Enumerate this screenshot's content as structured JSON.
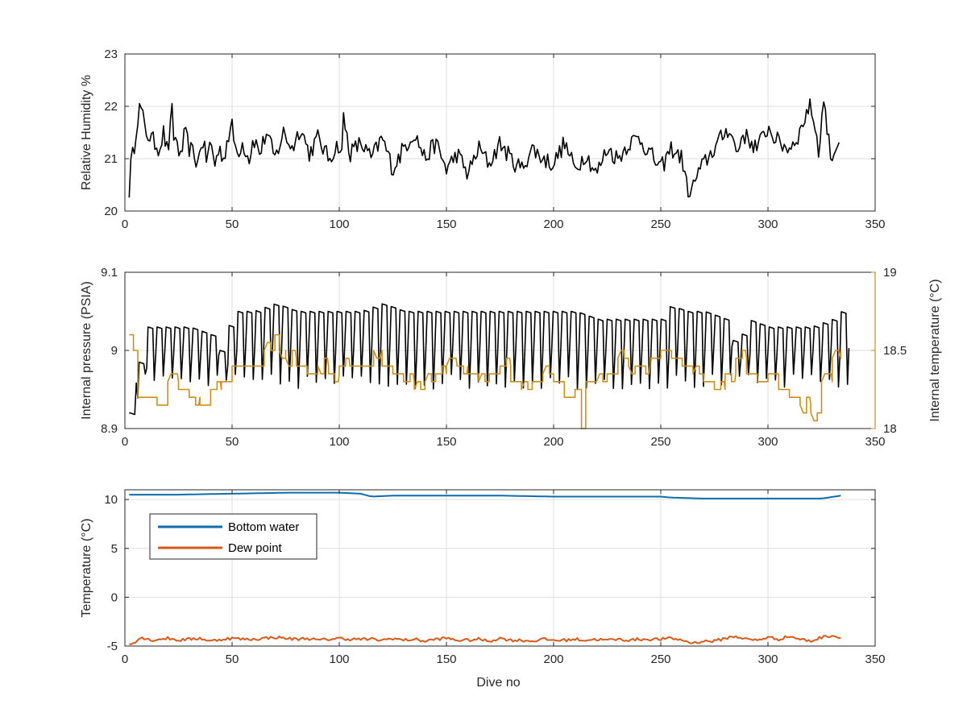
{
  "chart_data": [
    {
      "type": "line",
      "title": "",
      "xlabel": "",
      "ylabel": "Relative Humidity %",
      "xlim": [
        0,
        350
      ],
      "ylim": [
        20,
        23
      ],
      "xticks": [
        0,
        50,
        100,
        150,
        200,
        250,
        300,
        350
      ],
      "yticks": [
        20,
        21,
        22,
        23
      ],
      "grid": true,
      "series": [
        {
          "name": "",
          "color": "#000000",
          "x": [
            2,
            3,
            4,
            5,
            6,
            7,
            8,
            9,
            10,
            12,
            14,
            16,
            18,
            20,
            22,
            23,
            24,
            26,
            28,
            30,
            32,
            34,
            36,
            38,
            40,
            42,
            44,
            46,
            48,
            50,
            52,
            55,
            58,
            60,
            63,
            66,
            70,
            74,
            78,
            82,
            86,
            90,
            95,
            100,
            101,
            102,
            105,
            110,
            115,
            120,
            125,
            130,
            135,
            140,
            145,
            150,
            155,
            160,
            165,
            170,
            175,
            180,
            185,
            190,
            195,
            200,
            205,
            210,
            215,
            220,
            225,
            230,
            235,
            240,
            245,
            250,
            255,
            260,
            262,
            264,
            266,
            270,
            275,
            280,
            282,
            284,
            286,
            288,
            290,
            295,
            300,
            305,
            310,
            315,
            318,
            320,
            322,
            324,
            326,
            328,
            330,
            332,
            334
          ],
          "values": [
            20.4,
            21.0,
            21.1,
            21.5,
            21.8,
            22.0,
            21.9,
            21.6,
            21.5,
            21.4,
            21.3,
            21.2,
            21.5,
            21.1,
            21.9,
            21.3,
            21.4,
            21.0,
            21.5,
            21.2,
            21.1,
            20.9,
            21.4,
            21.0,
            21.3,
            20.9,
            21.2,
            21.0,
            21.4,
            21.6,
            21.1,
            21.3,
            21.0,
            21.4,
            21.1,
            21.5,
            21.0,
            21.5,
            21.2,
            21.6,
            21.1,
            21.4,
            21.0,
            21.3,
            20.9,
            21.8,
            21.1,
            21.3,
            21.0,
            21.4,
            20.8,
            21.2,
            21.5,
            21.0,
            21.3,
            20.8,
            21.1,
            20.7,
            21.2,
            20.9,
            21.3,
            21.0,
            20.8,
            21.2,
            21.0,
            20.9,
            21.3,
            20.8,
            21.1,
            20.7,
            21.2,
            21.0,
            21.3,
            21.4,
            21.1,
            20.8,
            21.2,
            21.0,
            20.5,
            20.3,
            20.6,
            20.9,
            21.2,
            21.5,
            21.6,
            21.3,
            21.1,
            21.5,
            21.4,
            21.2,
            21.6,
            21.3,
            21.2,
            21.5,
            21.9,
            22.0,
            21.6,
            21.1,
            22.2,
            21.4,
            21.0,
            21.3,
            21.4
          ]
        }
      ]
    },
    {
      "type": "line",
      "title": "",
      "xlabel": "",
      "ylabel": "Internal pressure (PSIA)",
      "ylabel_right": "Internal temperature (°C)",
      "xlim": [
        0,
        350
      ],
      "ylim": [
        8.9,
        9.1
      ],
      "ylim_right": [
        18,
        19
      ],
      "xticks": [
        0,
        50,
        100,
        150,
        200,
        250,
        300,
        350
      ],
      "yticks": [
        8.9,
        9,
        9.1
      ],
      "yticks_right": [
        18,
        18.5,
        19
      ],
      "grid": true,
      "series": [
        {
          "name": "",
          "axis": "left",
          "color": "#000000",
          "x": [
            2,
            4,
            6,
            8,
            10,
            20,
            30,
            40,
            44,
            48,
            50,
            60,
            70,
            80,
            90,
            100,
            110,
            120,
            130,
            140,
            150,
            160,
            170,
            180,
            190,
            200,
            210,
            220,
            230,
            240,
            250,
            255,
            260,
            270,
            280,
            285,
            290,
            300,
            310,
            320,
            330,
            334
          ],
          "values": [
            8.92,
            8.94,
            8.98,
            9.03,
            9.03,
            9.03,
            9.03,
            9.02,
            9.0,
            9.03,
            9.05,
            9.05,
            9.06,
            9.05,
            9.05,
            9.05,
            9.05,
            9.06,
            9.05,
            9.05,
            9.05,
            9.05,
            9.05,
            9.05,
            9.05,
            9.05,
            9.05,
            9.04,
            9.04,
            9.04,
            9.04,
            9.06,
            9.05,
            9.05,
            9.04,
            9.0,
            9.04,
            9.03,
            9.03,
            9.03,
            9.04,
            9.05
          ],
          "oscillation_low": 8.96
        },
        {
          "name": "",
          "axis": "right",
          "color": "#c8901a",
          "x": [
            2,
            4,
            6,
            10,
            15,
            20,
            25,
            30,
            35,
            40,
            45,
            48,
            50,
            55,
            60,
            65,
            70,
            72,
            75,
            80,
            85,
            90,
            95,
            100,
            105,
            110,
            114,
            116,
            120,
            125,
            130,
            135,
            140,
            145,
            150,
            155,
            160,
            165,
            170,
            175,
            180,
            185,
            190,
            195,
            200,
            205,
            210,
            213,
            215,
            220,
            225,
            230,
            235,
            240,
            245,
            250,
            255,
            260,
            265,
            270,
            275,
            280,
            285,
            290,
            295,
            300,
            305,
            310,
            315,
            320,
            325,
            330,
            334
          ],
          "values": [
            18.6,
            18.5,
            18.2,
            18.2,
            18.15,
            18.3,
            18.25,
            18.2,
            18.15,
            18.25,
            18.3,
            18.3,
            18.4,
            18.4,
            18.4,
            18.5,
            18.6,
            18.5,
            18.45,
            18.4,
            18.35,
            18.4,
            18.35,
            18.4,
            18.4,
            18.4,
            18.4,
            18.5,
            18.4,
            18.35,
            18.3,
            18.25,
            18.3,
            18.35,
            18.4,
            18.4,
            18.35,
            18.3,
            18.35,
            18.4,
            18.3,
            18.25,
            18.3,
            18.35,
            18.3,
            18.2,
            18.25,
            18.0,
            18.3,
            18.3,
            18.35,
            18.45,
            18.4,
            18.4,
            18.45,
            18.5,
            18.45,
            18.4,
            18.35,
            18.3,
            18.25,
            18.35,
            18.45,
            18.35,
            18.3,
            18.35,
            18.25,
            18.2,
            18.15,
            18.1,
            18.3,
            18.45,
            18.5
          ]
        }
      ]
    },
    {
      "type": "line",
      "title": "",
      "xlabel": "Dive no",
      "ylabel": "Temperature (°C)",
      "xlim": [
        0,
        350
      ],
      "ylim": [
        -5,
        11
      ],
      "xticks": [
        0,
        50,
        100,
        150,
        200,
        250,
        300,
        350
      ],
      "yticks": [
        -5,
        0,
        5,
        10
      ],
      "grid": true,
      "legend_position": "top-left",
      "series": [
        {
          "name": "Bottom water",
          "color": "#0d6dad",
          "x": [
            2,
            25,
            50,
            75,
            100,
            110,
            115,
            125,
            150,
            175,
            200,
            225,
            250,
            255,
            270,
            300,
            325,
            334
          ],
          "values": [
            10.5,
            10.5,
            10.6,
            10.7,
            10.7,
            10.6,
            10.3,
            10.4,
            10.4,
            10.4,
            10.3,
            10.3,
            10.3,
            10.2,
            10.1,
            10.1,
            10.1,
            10.4
          ]
        },
        {
          "name": "Dew point",
          "color": "#d35a1a",
          "x": [
            2,
            5,
            8,
            12,
            16,
            20,
            25,
            30,
            35,
            40,
            45,
            50,
            55,
            60,
            65,
            70,
            75,
            80,
            85,
            90,
            95,
            100,
            105,
            110,
            115,
            120,
            125,
            130,
            135,
            140,
            145,
            150,
            155,
            160,
            165,
            170,
            175,
            180,
            185,
            190,
            195,
            200,
            205,
            210,
            215,
            220,
            225,
            230,
            235,
            240,
            245,
            250,
            255,
            260,
            265,
            270,
            275,
            280,
            285,
            290,
            295,
            300,
            305,
            310,
            315,
            320,
            325,
            330,
            334
          ],
          "values": [
            -4.8,
            -4.5,
            -4.1,
            -4.4,
            -4.3,
            -4.2,
            -4.4,
            -4.3,
            -4.2,
            -4.5,
            -4.3,
            -4.2,
            -4.3,
            -4.3,
            -4.2,
            -4.1,
            -4.2,
            -4.3,
            -4.2,
            -4.4,
            -4.3,
            -4.2,
            -4.3,
            -4.3,
            -4.3,
            -4.4,
            -4.2,
            -4.4,
            -4.3,
            -4.5,
            -4.3,
            -4.2,
            -4.4,
            -4.4,
            -4.3,
            -4.5,
            -4.2,
            -4.4,
            -4.4,
            -4.5,
            -4.3,
            -4.4,
            -4.4,
            -4.3,
            -4.4,
            -4.3,
            -4.4,
            -4.3,
            -4.4,
            -4.3,
            -4.3,
            -4.3,
            -4.2,
            -4.4,
            -4.7,
            -4.5,
            -4.5,
            -4.2,
            -4.0,
            -4.3,
            -4.4,
            -4.1,
            -4.3,
            -4.0,
            -4.3,
            -4.5,
            -4.1,
            -3.9,
            -4.2
          ]
        }
      ]
    }
  ]
}
